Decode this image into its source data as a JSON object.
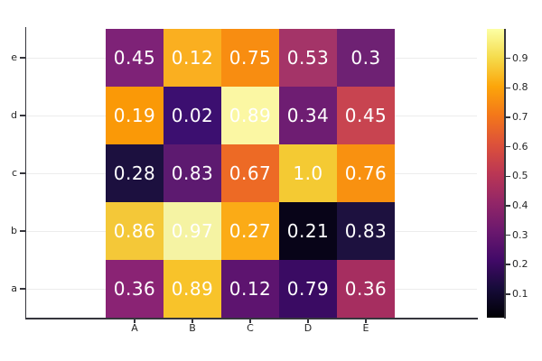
{
  "figure": {
    "background": "#ffffff"
  },
  "axes": {
    "x_tick_labels": [
      "A",
      "B",
      "C",
      "D",
      "E"
    ],
    "y_tick_labels_top_to_bottom": [
      "e",
      "d",
      "c",
      "b",
      "a"
    ],
    "axis_color": "#36363d",
    "tick_label_color": "#262626",
    "gridline_color": "#ececec"
  },
  "chart_data": {
    "type": "heatmap",
    "title": "",
    "xlabel": "",
    "ylabel": "",
    "x_categories": [
      "A",
      "B",
      "C",
      "D",
      "E"
    ],
    "y_categories_top_to_bottom": [
      "e",
      "d",
      "c",
      "b",
      "a"
    ],
    "annotations": [
      [
        "0.45",
        "0.12",
        "0.75",
        "0.53",
        "0.3"
      ],
      [
        "0.19",
        "0.02",
        "0.89",
        "0.34",
        "0.45"
      ],
      [
        "0.28",
        "0.83",
        "0.67",
        "1.0",
        "0.76"
      ],
      [
        "0.86",
        "0.97",
        "0.27",
        "0.21",
        "0.83"
      ],
      [
        "0.36",
        "0.89",
        "0.12",
        "0.79",
        "0.36"
      ]
    ],
    "annotation_color": "#ffffff",
    "cell_colors": [
      [
        "#7e2277",
        "#faaf20",
        "#f88d11",
        "#a43468",
        "#6e2173"
      ],
      [
        "#fa9907",
        "#3c0f70",
        "#fbf7a3",
        "#6e1d72",
        "#c84450"
      ],
      [
        "#1c103f",
        "#5d1a70",
        "#ed6a25",
        "#f4ca33",
        "#f99110"
      ],
      [
        "#f4c838",
        "#f5f3a3",
        "#fbab16",
        "#080418",
        "#1d113f"
      ],
      [
        "#8a2374",
        "#f8c32a",
        "#5d146f",
        "#3a0b63",
        "#a62e60"
      ]
    ],
    "colorbar": {
      "colormap": "inferno",
      "vmin": 0.02,
      "vmax": 1.0,
      "tick_values": [
        0.9,
        0.8,
        0.7,
        0.6,
        0.5,
        0.4,
        0.3,
        0.2,
        0.1
      ],
      "tick_labels": [
        "0.9",
        "0.8",
        "0.7",
        "0.6",
        "0.5",
        "0.4",
        "0.3",
        "0.2",
        "0.1"
      ],
      "gradient_stops_bottom_to_top": [
        "#000004",
        "#160b39",
        "#420a68",
        "#6b186e",
        "#932667",
        "#bb3754",
        "#dd513a",
        "#f3771a",
        "#fca50a",
        "#f5db4b",
        "#fcffa4"
      ]
    },
    "legend": "none",
    "grid": true
  }
}
